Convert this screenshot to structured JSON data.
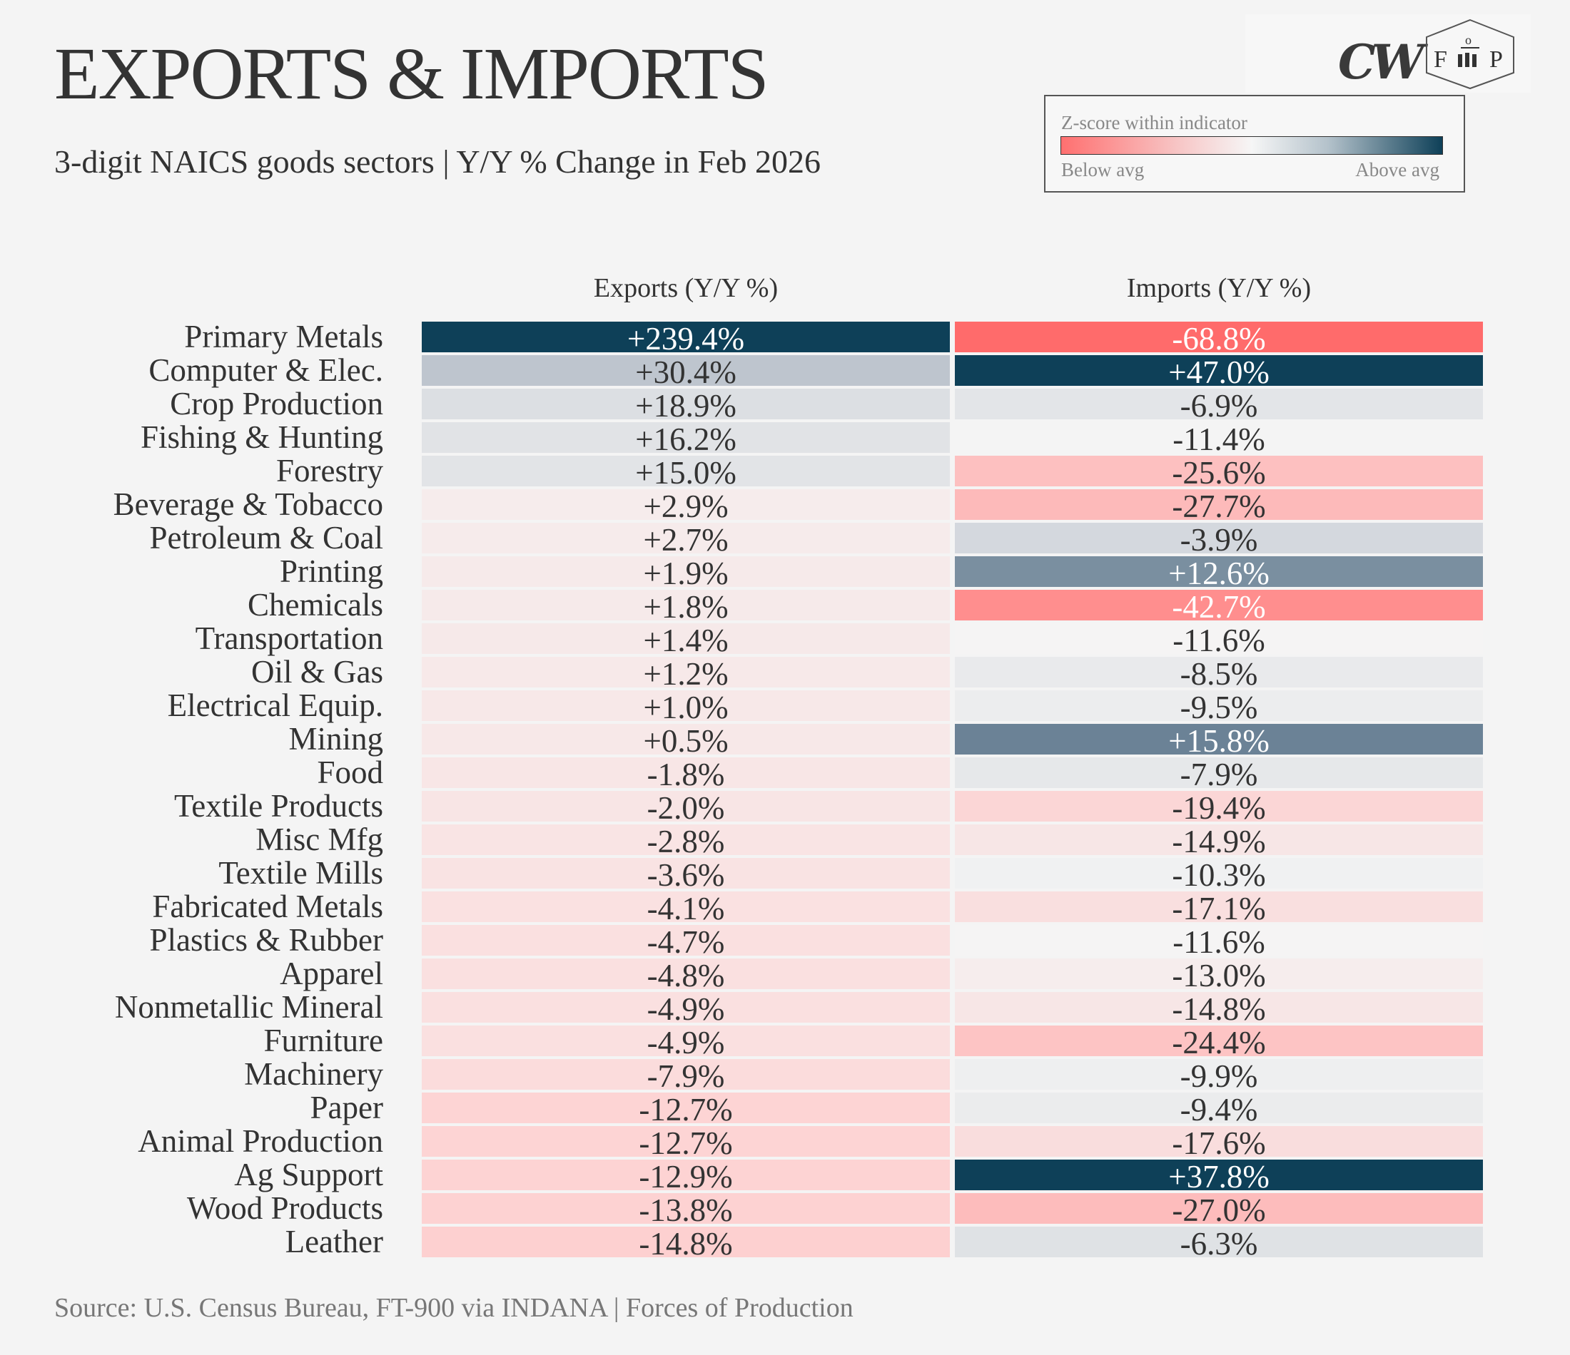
{
  "title": "EXPORTS & IMPORTS",
  "subtitle": "3-digit NAICS goods sectors | Y/Y % Change in Feb 2026",
  "logos": {
    "cw": "CW",
    "fp": "F o P"
  },
  "legend": {
    "title": "Z-score within indicator",
    "low": "Below avg",
    "high": "Above avg",
    "low_color": "#ff7070",
    "mid_color": "#f6f6f6",
    "high_color": "#0e4058"
  },
  "source": "Source: U.S. Census Bureau, FT-900 via INDANA | Forces of Production",
  "chart_data": {
    "type": "table",
    "title": "EXPORTS & IMPORTS",
    "columns": [
      "Exports (Y/Y %)",
      "Imports (Y/Y %)"
    ],
    "rows": [
      {
        "sector": "Primary Metals",
        "exports": "+239.4%",
        "imports": "-68.8%",
        "ec": "#0e4058",
        "ic": "#ff6b6b",
        "ew": true,
        "iw": true
      },
      {
        "sector": "Computer & Elec.",
        "exports": "+30.4%",
        "imports": "+47.0%",
        "ec": "#bec5ce",
        "ic": "#0e4058",
        "iw": true
      },
      {
        "sector": "Crop Production",
        "exports": "+18.9%",
        "imports": "-6.9%",
        "ec": "#dcdfe3",
        "ic": "#e3e5e8"
      },
      {
        "sector": "Fishing & Hunting",
        "exports": "+16.2%",
        "imports": "-11.4%",
        "ec": "#e1e3e6",
        "ic": "#f4f4f4"
      },
      {
        "sector": "Forestry",
        "exports": "+15.0%",
        "imports": "-25.6%",
        "ec": "#e2e4e7",
        "ic": "#fdc0c0"
      },
      {
        "sector": "Beverage & Tobacco",
        "exports": "+2.9%",
        "imports": "-27.7%",
        "ec": "#f6ecec",
        "ic": "#fdbaba"
      },
      {
        "sector": "Petroleum & Coal",
        "exports": "+2.7%",
        "imports": "-3.9%",
        "ec": "#f6ebeb",
        "ic": "#d4d8de"
      },
      {
        "sector": "Printing",
        "exports": "+1.9%",
        "imports": "+12.6%",
        "ec": "#f6eaea",
        "ic": "#7a8fa0",
        "iw": true
      },
      {
        "sector": "Chemicals",
        "exports": "+1.8%",
        "imports": "-42.7%",
        "ec": "#f6eaea",
        "ic": "#ff8e8e",
        "iw": true
      },
      {
        "sector": "Transportation",
        "exports": "+1.4%",
        "imports": "-11.6%",
        "ec": "#f6e9e9",
        "ic": "#f5f4f4"
      },
      {
        "sector": "Oil & Gas",
        "exports": "+1.2%",
        "imports": "-8.5%",
        "ec": "#f7e9e9",
        "ic": "#e9eaec"
      },
      {
        "sector": "Electrical Equip.",
        "exports": "+1.0%",
        "imports": "-9.5%",
        "ec": "#f7e8e8",
        "ic": "#ecedee"
      },
      {
        "sector": "Mining",
        "exports": "+0.5%",
        "imports": "+15.8%",
        "ec": "#f7e8e8",
        "ic": "#6b8296",
        "iw": true
      },
      {
        "sector": "Food",
        "exports": "-1.8%",
        "imports": "-7.9%",
        "ec": "#f8e6e6",
        "ic": "#e6e8ea"
      },
      {
        "sector": "Textile Products",
        "exports": "-2.0%",
        "imports": "-19.4%",
        "ec": "#f8e5e5",
        "ic": "#fbd6d6"
      },
      {
        "sector": "Misc Mfg",
        "exports": "-2.8%",
        "imports": "-14.9%",
        "ec": "#f9e4e4",
        "ic": "#f7e6e6"
      },
      {
        "sector": "Textile Mills",
        "exports": "-3.6%",
        "imports": "-10.3%",
        "ec": "#f9e3e3",
        "ic": "#f0f1f2"
      },
      {
        "sector": "Fabricated Metals",
        "exports": "-4.1%",
        "imports": "-17.1%",
        "ec": "#fae1e1",
        "ic": "#f9dfdf"
      },
      {
        "sector": "Plastics & Rubber",
        "exports": "-4.7%",
        "imports": "-11.6%",
        "ec": "#fae0e0",
        "ic": "#f5f4f4"
      },
      {
        "sector": "Apparel",
        "exports": "-4.8%",
        "imports": "-13.0%",
        "ec": "#fae0e0",
        "ic": "#f6eded"
      },
      {
        "sector": "Nonmetallic Mineral",
        "exports": "-4.9%",
        "imports": "-14.8%",
        "ec": "#fae0e0",
        "ic": "#f7e6e6"
      },
      {
        "sector": "Furniture",
        "exports": "-4.9%",
        "imports": "-24.4%",
        "ec": "#fae0e0",
        "ic": "#fdc4c4"
      },
      {
        "sector": "Machinery",
        "exports": "-7.9%",
        "imports": "-9.9%",
        "ec": "#fbdcdc",
        "ic": "#eeeff0"
      },
      {
        "sector": "Paper",
        "exports": "-12.7%",
        "imports": "-9.4%",
        "ec": "#fdd4d4",
        "ic": "#ebeced"
      },
      {
        "sector": "Animal Production",
        "exports": "-12.7%",
        "imports": "-17.6%",
        "ec": "#fdd4d4",
        "ic": "#f9dddd"
      },
      {
        "sector": "Ag Support",
        "exports": "-12.9%",
        "imports": "+37.8%",
        "ec": "#fdd3d3",
        "ic": "#0e4058",
        "iw": true
      },
      {
        "sector": "Wood Products",
        "exports": "-13.8%",
        "imports": "-27.0%",
        "ec": "#fdd2d2",
        "ic": "#fdbcbc"
      },
      {
        "sector": "Leather",
        "exports": "-14.8%",
        "imports": "-6.3%",
        "ec": "#fdd0d0",
        "ic": "#dfe2e5"
      }
    ]
  }
}
